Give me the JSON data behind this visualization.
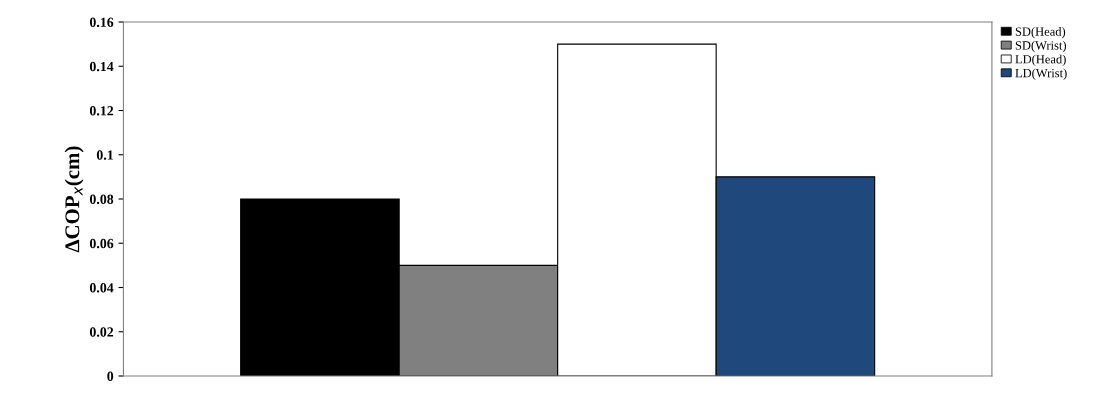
{
  "chart_data": {
    "type": "bar",
    "ylabel": "ΔCOP$_{x}$(cm)",
    "categories": [
      null
    ],
    "series": [
      {
        "name": "SD(Head)",
        "color": "#000000",
        "values": [
          0.08
        ]
      },
      {
        "name": "SD(Wrist)",
        "color": "#808080",
        "values": [
          0.05
        ]
      },
      {
        "name": "LD(Head)",
        "color": "#ffffff",
        "values": [
          0.15
        ]
      },
      {
        "name": "LD(Wrist)",
        "color": "#1f497d",
        "values": [
          0.09
        ]
      }
    ],
    "ylim": [
      0,
      0.16
    ],
    "yticks": [
      0,
      0.02,
      0.04,
      0.06,
      0.08,
      {
        "value": 0.1,
        "label": "0.1"
      },
      0.12,
      0.14,
      0.16
    ],
    "grid": false,
    "legend": "top right"
  }
}
